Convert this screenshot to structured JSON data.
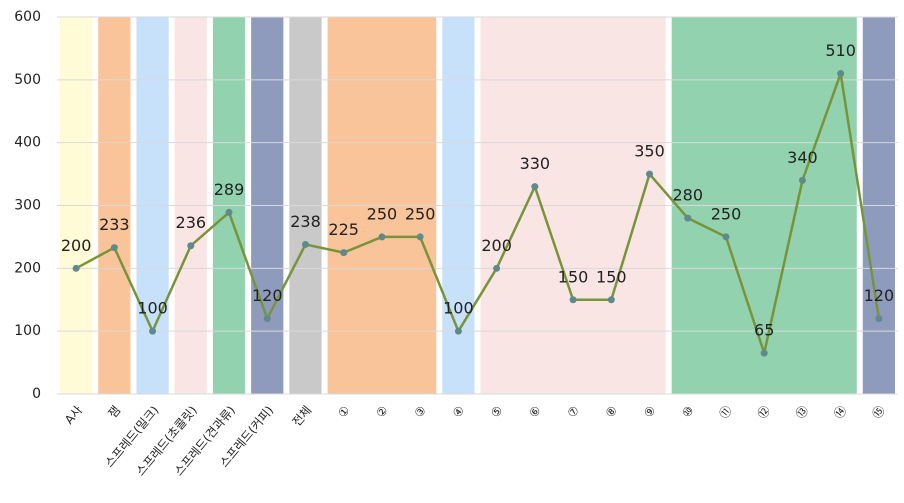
{
  "chart_data": {
    "type": "line",
    "categories": [
      "A사",
      "잼",
      "스프레드(밀크)",
      "스프레드(초콜릿)",
      "스프레드(견과류)",
      "스프레드(커피)",
      "전체",
      "①",
      "②",
      "③",
      "④",
      "⑤",
      "⑥",
      "⑦",
      "⑧",
      "⑨",
      "⑩",
      "⑪",
      "⑫",
      "⑬",
      "⑭",
      "⑮"
    ],
    "values": [
      200,
      233,
      100,
      236,
      289,
      120,
      238,
      225,
      250,
      250,
      100,
      200,
      330,
      150,
      150,
      350,
      280,
      250,
      65,
      340,
      510,
      120
    ],
    "color": "#77943a",
    "marker_color": "#5f8a8c",
    "band_colors": [
      "#fffbd6",
      "#f9c499",
      "#c8e1fa",
      "#fae5e5",
      "#93d2ae",
      "#8e9bbd",
      "#c9c9c9",
      "#f9c499",
      "#f9c499",
      "#f9c499",
      "#c8e1fa",
      "#fae5e5",
      "#fae5e5",
      "#fae5e5",
      "#fae5e5",
      "#fae5e5",
      "#93d2ae",
      "#93d2ae",
      "#93d2ae",
      "#93d2ae",
      "#93d2ae",
      "#8e9bbd"
    ],
    "ylim": [
      0,
      600
    ],
    "yticks": [
      0,
      100,
      200,
      300,
      400,
      500,
      600
    ],
    "grid": true
  }
}
